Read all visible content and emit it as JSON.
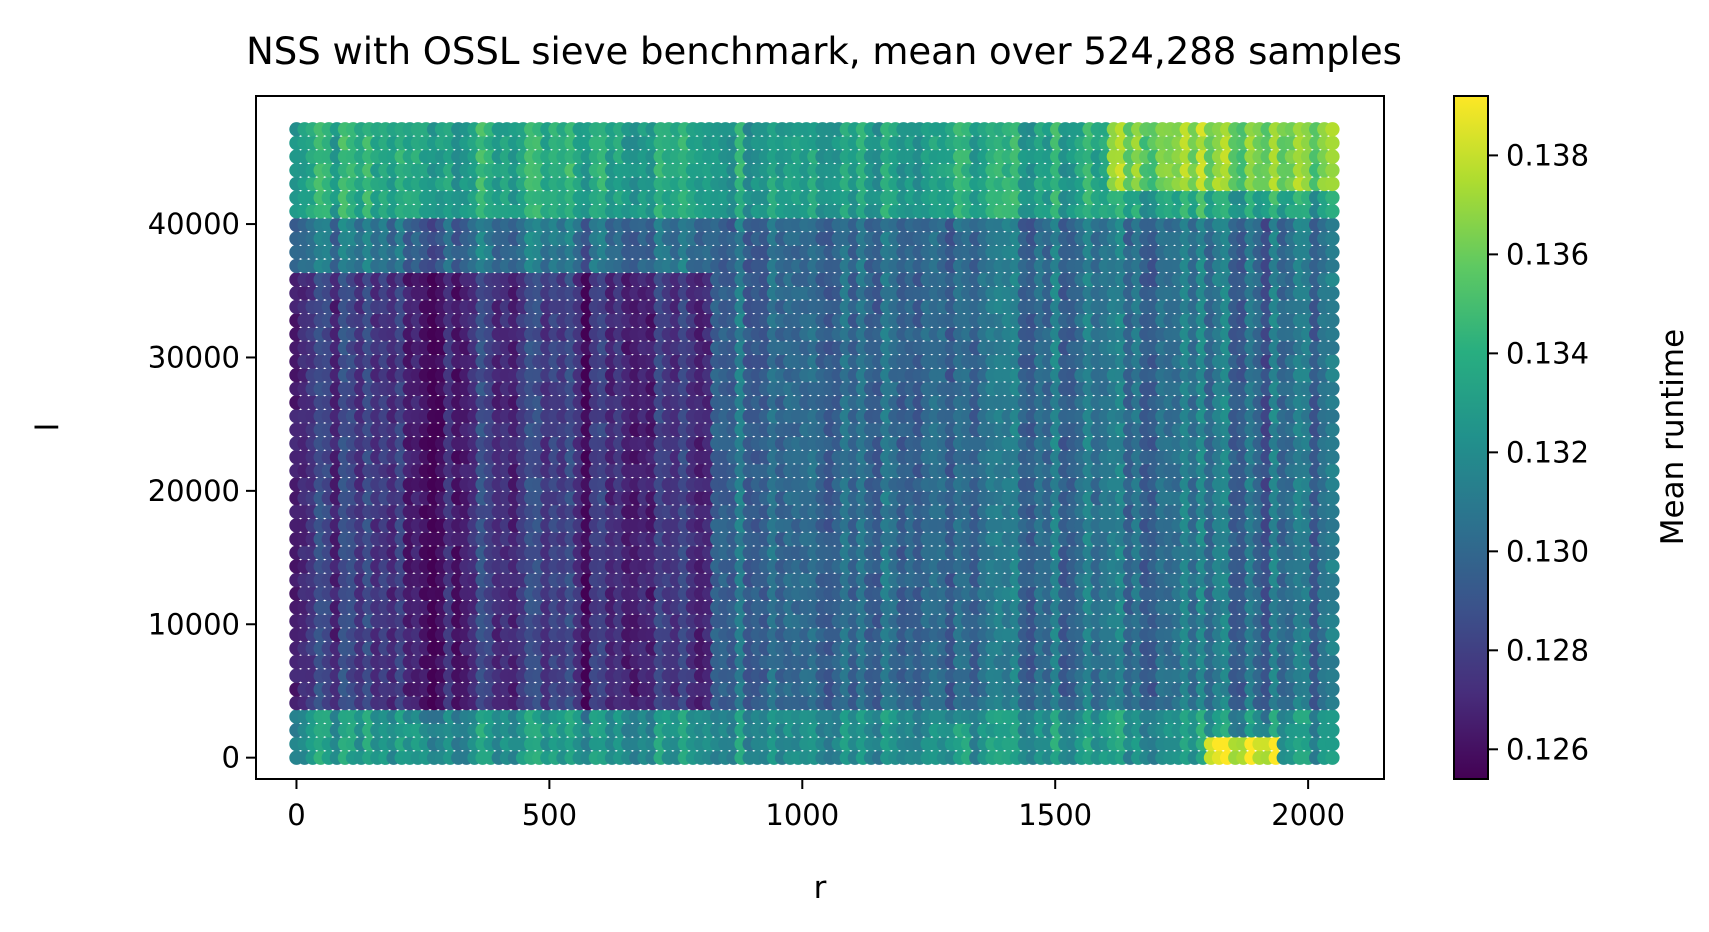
{
  "chart_data": {
    "type": "scatter",
    "title": "NSS with OSSL sieve benchmark, mean over 524,288 samples",
    "xlabel": "r",
    "ylabel": "l",
    "xlim": [
      -80,
      2150
    ],
    "ylim": [
      -1600,
      49600
    ],
    "xticks": [
      0,
      500,
      1000,
      1500,
      2000
    ],
    "yticks": [
      0,
      10000,
      20000,
      30000,
      40000
    ],
    "grid": false,
    "marker": "circle, dense grid of filled points",
    "points_grid": {
      "r_range": [
        0,
        2048
      ],
      "l_range": [
        0,
        47104
      ],
      "r_step": 16,
      "l_step": 1024
    },
    "colormap": "viridis",
    "colorbar": {
      "label": "Mean runtime",
      "range": [
        0.1254,
        0.1392
      ],
      "ticks": [
        "0.126",
        "0.128",
        "0.130",
        "0.132",
        "0.134",
        "0.136",
        "0.138"
      ],
      "tick_values": [
        0.126,
        0.128,
        0.13,
        0.132,
        0.134,
        0.136,
        0.138
      ]
    },
    "value_trends": {
      "baseline": 0.1305,
      "region_r_0_to_820_l_2000_to_36000": 0.1275,
      "region_r_820_to_2048_l_5000_to_38000": 0.1305,
      "band_l_0_to_4000": 0.1325,
      "band_l_40000_to_47000": 0.1335,
      "hot_corner_r_1800_to_1950_l_0_to_2000": 0.1385,
      "hot_corner_r_1600_to_2048_l_42000_to_47000": 0.1365,
      "dark_stripes_r": [
        220,
        250,
        280,
        580,
        1300,
        1320,
        1920
      ]
    }
  }
}
